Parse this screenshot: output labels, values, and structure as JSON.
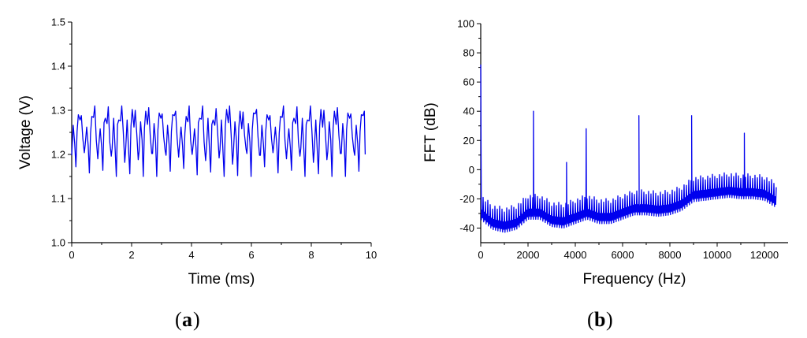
{
  "chart_data": [
    {
      "type": "line",
      "panel_label": "a",
      "title": "",
      "xlabel": "Time (ms)",
      "ylabel": "Voltage (V)",
      "xlim": [
        0,
        10
      ],
      "ylim": [
        1.0,
        1.5
      ],
      "xticks": [
        0,
        2,
        4,
        6,
        8,
        10
      ],
      "yticks": [
        1.0,
        1.1,
        1.2,
        1.3,
        1.4,
        1.5
      ],
      "xtick_labels": [
        "0",
        "2",
        "4",
        "6",
        "8",
        "10"
      ],
      "ytick_labels": [
        "1.0",
        "1.1",
        "1.2",
        "1.3",
        "1.4",
        "1.5"
      ],
      "grid": false,
      "series": [
        {
          "color": "#0000ee",
          "x_range": [
            0,
            9.8
          ],
          "period_ms": 0.45,
          "max": 1.31,
          "min": 1.15,
          "description_values": [
            [
              0.0,
              1.21
            ],
            [
              0.05,
              1.27
            ],
            [
              0.1,
              1.22
            ],
            [
              0.14,
              1.16
            ],
            [
              0.18,
              1.26
            ],
            [
              0.22,
              1.29
            ],
            [
              0.28,
              1.27
            ],
            [
              0.32,
              1.3
            ],
            [
              0.37,
              1.24
            ],
            [
              0.42,
              1.2
            ],
            [
              0.45,
              1.21
            ],
            [
              0.5,
              1.27
            ],
            [
              0.55,
              1.22
            ],
            [
              0.59,
              1.15
            ],
            [
              0.63,
              1.26
            ],
            [
              0.67,
              1.29
            ],
            [
              0.73,
              1.28
            ],
            [
              0.77,
              1.31
            ],
            [
              0.82,
              1.24
            ],
            [
              0.87,
              1.19
            ]
          ]
        }
      ]
    },
    {
      "type": "line",
      "panel_label": "b",
      "title": "",
      "xlabel": "Frequency (Hz)",
      "ylabel": "FFT (dB)",
      "xlim": [
        0,
        13000
      ],
      "ylim": [
        -50,
        100
      ],
      "xticks": [
        0,
        2000,
        4000,
        6000,
        8000,
        10000,
        12000
      ],
      "yticks": [
        -40,
        -20,
        0,
        20,
        40,
        60,
        80,
        100
      ],
      "xtick_labels": [
        "0",
        "2000",
        "4000",
        "6000",
        "8000",
        "10000",
        "12000"
      ],
      "ytick_labels": [
        "-40",
        "-20",
        "0",
        "20",
        "40",
        "60",
        "80",
        "100"
      ],
      "grid": false,
      "series": [
        {
          "color": "#0000ee",
          "x_range": [
            0,
            12500
          ],
          "dc_peak": [
            0,
            72
          ],
          "peaks": [
            [
              2230,
              40
            ],
            [
              3630,
              5
            ],
            [
              4460,
              28
            ],
            [
              6690,
              37
            ],
            [
              8920,
              37
            ],
            [
              11150,
              25
            ]
          ],
          "noise_floor": [
            [
              0,
              -30
            ],
            [
              500,
              -37
            ],
            [
              1000,
              -39
            ],
            [
              1500,
              -37
            ],
            [
              2000,
              -30
            ],
            [
              2500,
              -30
            ],
            [
              3000,
              -35
            ],
            [
              3500,
              -36
            ],
            [
              4000,
              -33
            ],
            [
              4500,
              -30
            ],
            [
              5000,
              -33
            ],
            [
              5500,
              -33
            ],
            [
              6000,
              -30
            ],
            [
              6500,
              -27
            ],
            [
              7000,
              -27
            ],
            [
              7500,
              -28
            ],
            [
              8000,
              -27
            ],
            [
              8500,
              -24
            ],
            [
              9000,
              -18
            ],
            [
              9500,
              -17
            ],
            [
              10000,
              -16
            ],
            [
              10500,
              -15
            ],
            [
              11000,
              -16
            ],
            [
              11500,
              -16
            ],
            [
              12000,
              -17
            ],
            [
              12500,
              -22
            ]
          ]
        }
      ]
    }
  ]
}
